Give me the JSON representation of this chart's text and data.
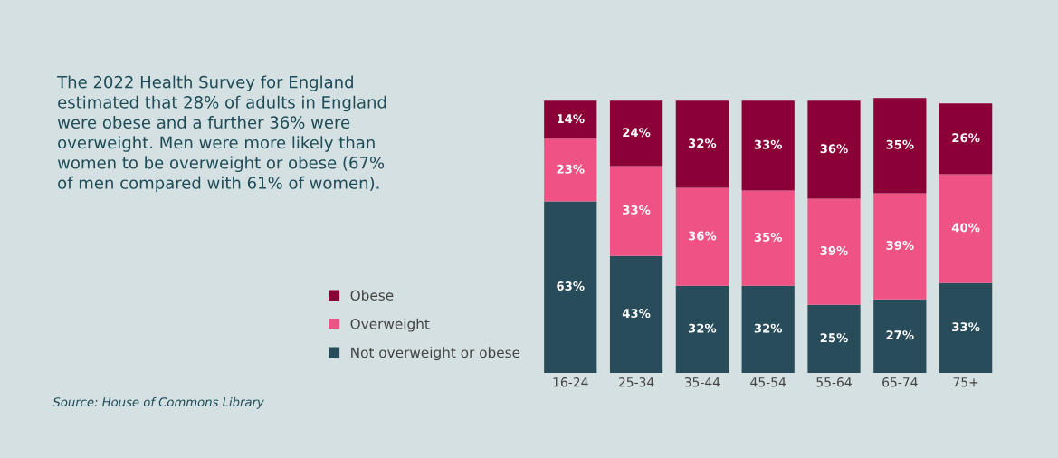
{
  "chart_data": {
    "type": "bar",
    "stacked": true,
    "subtitle": "The 2022 Health Survey for England\nestimated that 28% of adults in England\nwere obese and a further 36% were\noverweight. Men were more likely than\nwomen to be overweight or obese (67%\nof men compared with 61% of women).",
    "annotations": [
      "Source: House of Commons Library"
    ],
    "categories": [
      "16-24",
      "25-34",
      "35-44",
      "45-54",
      "55-64",
      "65-74",
      "75+"
    ],
    "series": [
      {
        "name": "Not overweight or obese",
        "color": "#294c5b",
        "values": [
          63,
          43,
          32,
          32,
          25,
          27,
          33
        ],
        "value_labels": [
          "63%",
          "43%",
          "32%",
          "32%",
          "25%",
          "27%",
          "33%"
        ]
      },
      {
        "name": "Overweight",
        "color": "#ef5386",
        "values": [
          23,
          33,
          36,
          35,
          39,
          39,
          40
        ],
        "value_labels": [
          "23%",
          "33%",
          "36%",
          "35%",
          "39%",
          "39%",
          "40%"
        ]
      },
      {
        "name": "Obese",
        "color": "#8b0036",
        "values": [
          14,
          24,
          32,
          33,
          36,
          35,
          26
        ],
        "value_labels": [
          "14%",
          "24%",
          "32%",
          "33%",
          "36%",
          "35%",
          "26%"
        ]
      }
    ],
    "tick_labels": "x",
    "legend": "left"
  }
}
